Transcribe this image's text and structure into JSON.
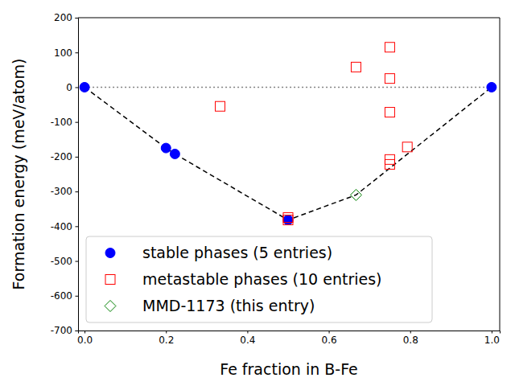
{
  "chart_data": {
    "type": "scatter",
    "x_label": "Fe fraction in B-Fe",
    "y_label": "Formation energy (meV/atom)",
    "xlim": [
      -0.016,
      1.02
    ],
    "ylim": [
      -700,
      200
    ],
    "xticks": [
      {
        "value": 0,
        "label": "0.0"
      },
      {
        "value": 0.2,
        "label": "0.2"
      },
      {
        "value": 0.4,
        "label": "0.4"
      },
      {
        "value": 0.6,
        "label": "0.6"
      },
      {
        "value": 0.8,
        "label": "0.8"
      },
      {
        "value": 1,
        "label": "1.0"
      }
    ],
    "yticks": [
      -700,
      -600,
      -500,
      -400,
      -300,
      -200,
      -100,
      0,
      100,
      200
    ],
    "legend": "lower left",
    "series": [
      {
        "type": "line",
        "line_style": "dotted",
        "color": "gray",
        "x": [
          0,
          1
        ],
        "values": [
          0,
          0
        ]
      },
      {
        "type": "line",
        "line_style": "dashed",
        "color": "black",
        "x": [
          0,
          0.2,
          0.222,
          0.5,
          0.667,
          1
        ],
        "values": [
          0,
          -175,
          -192,
          -382,
          -310,
          0
        ]
      },
      {
        "name": "stable phases (5 entries)",
        "type": "scatter",
        "marker": "circle",
        "color": "#0000ff",
        "x": [
          0,
          0.2,
          0.222,
          0.5,
          1
        ],
        "values": [
          0,
          -175,
          -192,
          -382,
          0
        ]
      },
      {
        "name": "metastable phases (10 entries)",
        "type": "scatter",
        "marker": "square-open",
        "color": "#ff0000",
        "x": [
          0.333,
          0.5,
          0.5,
          0.667,
          0.75,
          0.75,
          0.75,
          0.75,
          0.75,
          0.793
        ],
        "values": [
          -55,
          -375,
          -382,
          58,
          115,
          25,
          -72,
          -208,
          -222,
          -172
        ]
      },
      {
        "name": "MMD-1173 (this entry)",
        "type": "scatter",
        "marker": "diamond-open",
        "color": "#008000",
        "x": [
          0.667
        ],
        "values": [
          -310
        ]
      }
    ]
  }
}
